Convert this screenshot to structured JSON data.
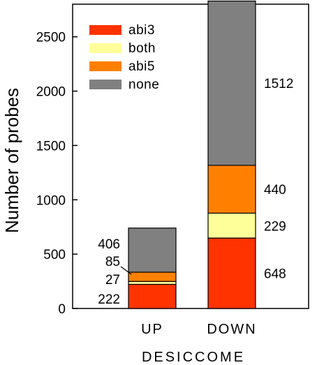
{
  "chart_data": {
    "type": "bar",
    "stacked": true,
    "categories": [
      "UP",
      "DOWN"
    ],
    "series": [
      {
        "name": "abi3",
        "color": "#ff3300",
        "values": [
          222,
          648
        ]
      },
      {
        "name": "both",
        "color": "#ffff99",
        "values": [
          27,
          229
        ]
      },
      {
        "name": "abi5",
        "color": "#ff8000",
        "values": [
          85,
          440
        ]
      },
      {
        "name": "none",
        "color": "#808080",
        "values": [
          406,
          1512
        ]
      }
    ],
    "data_labels": {
      "UP": [
        "222",
        "27",
        "85",
        "406"
      ],
      "DOWN": [
        "648",
        "229",
        "440",
        "1512"
      ]
    },
    "xlabel": "DESICCOME",
    "ylabel": "Number of probes",
    "ylim": [
      0,
      2800
    ],
    "yticks": [
      0,
      500,
      1000,
      1500,
      2000,
      2500
    ],
    "grid": false,
    "legend_position": "top-left"
  }
}
